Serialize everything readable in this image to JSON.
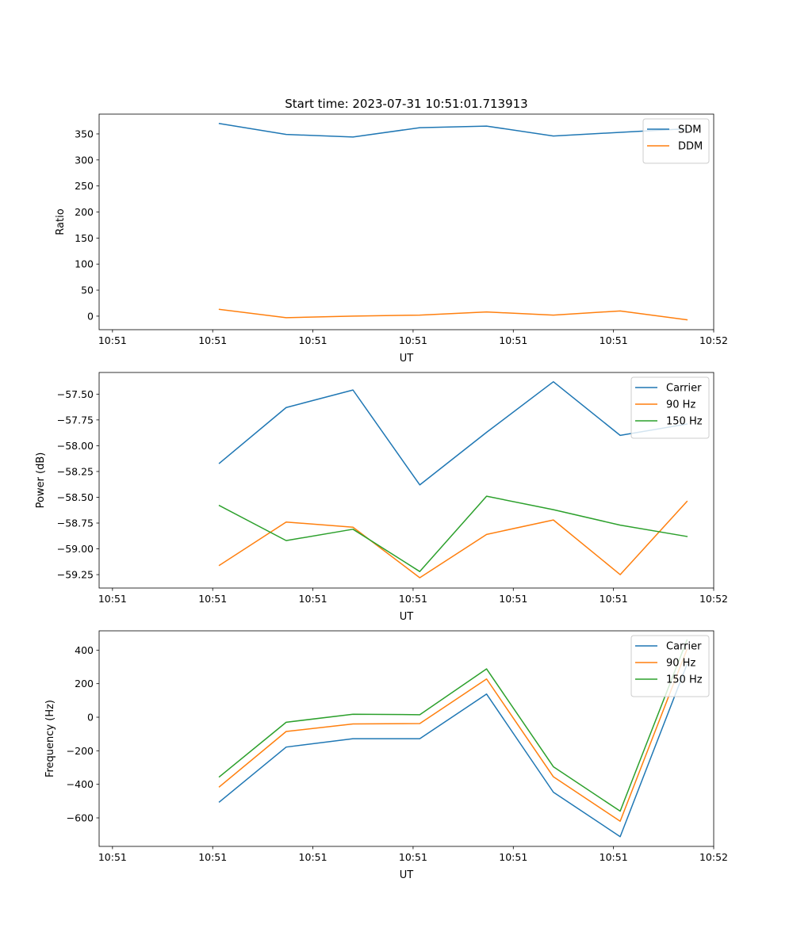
{
  "title": "Start time: 2023-07-31 10:51:01.713913",
  "colors": {
    "series1": "#1f77b4",
    "series2": "#ff7f0e",
    "series3": "#2ca02c"
  },
  "chart_data": [
    {
      "type": "line",
      "title": "Start time: 2023-07-31 10:51:01.713913",
      "xlabel": "UT",
      "ylabel": "Ratio",
      "x": [
        1,
        2,
        3,
        4,
        5,
        6,
        7,
        8
      ],
      "xlim": [
        -0.8,
        8.4
      ],
      "xticks": [
        -0.6,
        0.9,
        2.4,
        3.9,
        5.4,
        6.9,
        8.4
      ],
      "xticklabels": [
        "10:51",
        "10:51",
        "10:51",
        "10:51",
        "10:51",
        "10:51",
        "10:52"
      ],
      "ylim": [
        -26,
        388
      ],
      "yticks": [
        0,
        50,
        100,
        150,
        200,
        250,
        300,
        350
      ],
      "yticklabels": [
        "0",
        "50",
        "100",
        "150",
        "200",
        "250",
        "300",
        "350"
      ],
      "legend": "top-right",
      "series": [
        {
          "name": "SDM",
          "color": "#1f77b4",
          "values": [
            370,
            349,
            344,
            362,
            365,
            346,
            353,
            360
          ]
        },
        {
          "name": "DDM",
          "color": "#ff7f0e",
          "values": [
            13,
            -3,
            0,
            2,
            8,
            2,
            10,
            -7
          ]
        }
      ]
    },
    {
      "type": "line",
      "xlabel": "UT",
      "ylabel": "Power (dB)",
      "x": [
        1,
        2,
        3,
        4,
        5,
        6,
        7,
        8
      ],
      "xlim": [
        -0.8,
        8.4
      ],
      "xticks": [
        -0.6,
        0.9,
        2.4,
        3.9,
        5.4,
        6.9,
        8.4
      ],
      "xticklabels": [
        "10:51",
        "10:51",
        "10:51",
        "10:51",
        "10:51",
        "10:51",
        "10:52"
      ],
      "ylim": [
        -59.38,
        -57.29
      ],
      "yticks": [
        -59.25,
        -59.0,
        -58.75,
        -58.5,
        -58.25,
        -58.0,
        -57.75,
        -57.5
      ],
      "yticklabels": [
        "−59.25",
        "−59.00",
        "−58.75",
        "−58.50",
        "−58.25",
        "−58.00",
        "−57.75",
        "−57.50"
      ],
      "legend": "top-right",
      "series": [
        {
          "name": "Carrier",
          "color": "#1f77b4",
          "values": [
            -58.17,
            -57.63,
            -57.46,
            -58.38,
            -57.87,
            -57.38,
            -57.9,
            -57.79
          ]
        },
        {
          "name": "90 Hz",
          "color": "#ff7f0e",
          "values": [
            -59.16,
            -58.74,
            -58.79,
            -59.28,
            -58.86,
            -58.72,
            -59.25,
            -58.54
          ]
        },
        {
          "name": "150 Hz",
          "color": "#2ca02c",
          "values": [
            -58.58,
            -58.92,
            -58.81,
            -59.22,
            -58.49,
            -58.62,
            -58.77,
            -58.88
          ]
        }
      ]
    },
    {
      "type": "line",
      "xlabel": "UT",
      "ylabel": "Frequency (Hz)",
      "x": [
        1,
        2,
        3,
        4,
        5,
        6,
        7,
        8
      ],
      "xlim": [
        -0.8,
        8.4
      ],
      "xticks": [
        -0.6,
        0.9,
        2.4,
        3.9,
        5.4,
        6.9,
        8.4
      ],
      "xticklabels": [
        "10:51",
        "10:51",
        "10:51",
        "10:51",
        "10:51",
        "10:51",
        "10:52"
      ],
      "ylim": [
        -770,
        515
      ],
      "yticks": [
        -600,
        -400,
        -200,
        0,
        200,
        400
      ],
      "yticklabels": [
        "−600",
        "−400",
        "−200",
        "0",
        "200",
        "400"
      ],
      "legend": "top-right",
      "series": [
        {
          "name": "Carrier",
          "color": "#1f77b4",
          "values": [
            -505,
            -178,
            -128,
            -128,
            138,
            -447,
            -712,
            315
          ]
        },
        {
          "name": "90 Hz",
          "color": "#ff7f0e",
          "values": [
            -415,
            -85,
            -40,
            -38,
            228,
            -355,
            -620,
            405
          ]
        },
        {
          "name": "150 Hz",
          "color": "#2ca02c",
          "values": [
            -355,
            -30,
            18,
            15,
            288,
            -295,
            -560,
            460
          ]
        }
      ]
    }
  ]
}
